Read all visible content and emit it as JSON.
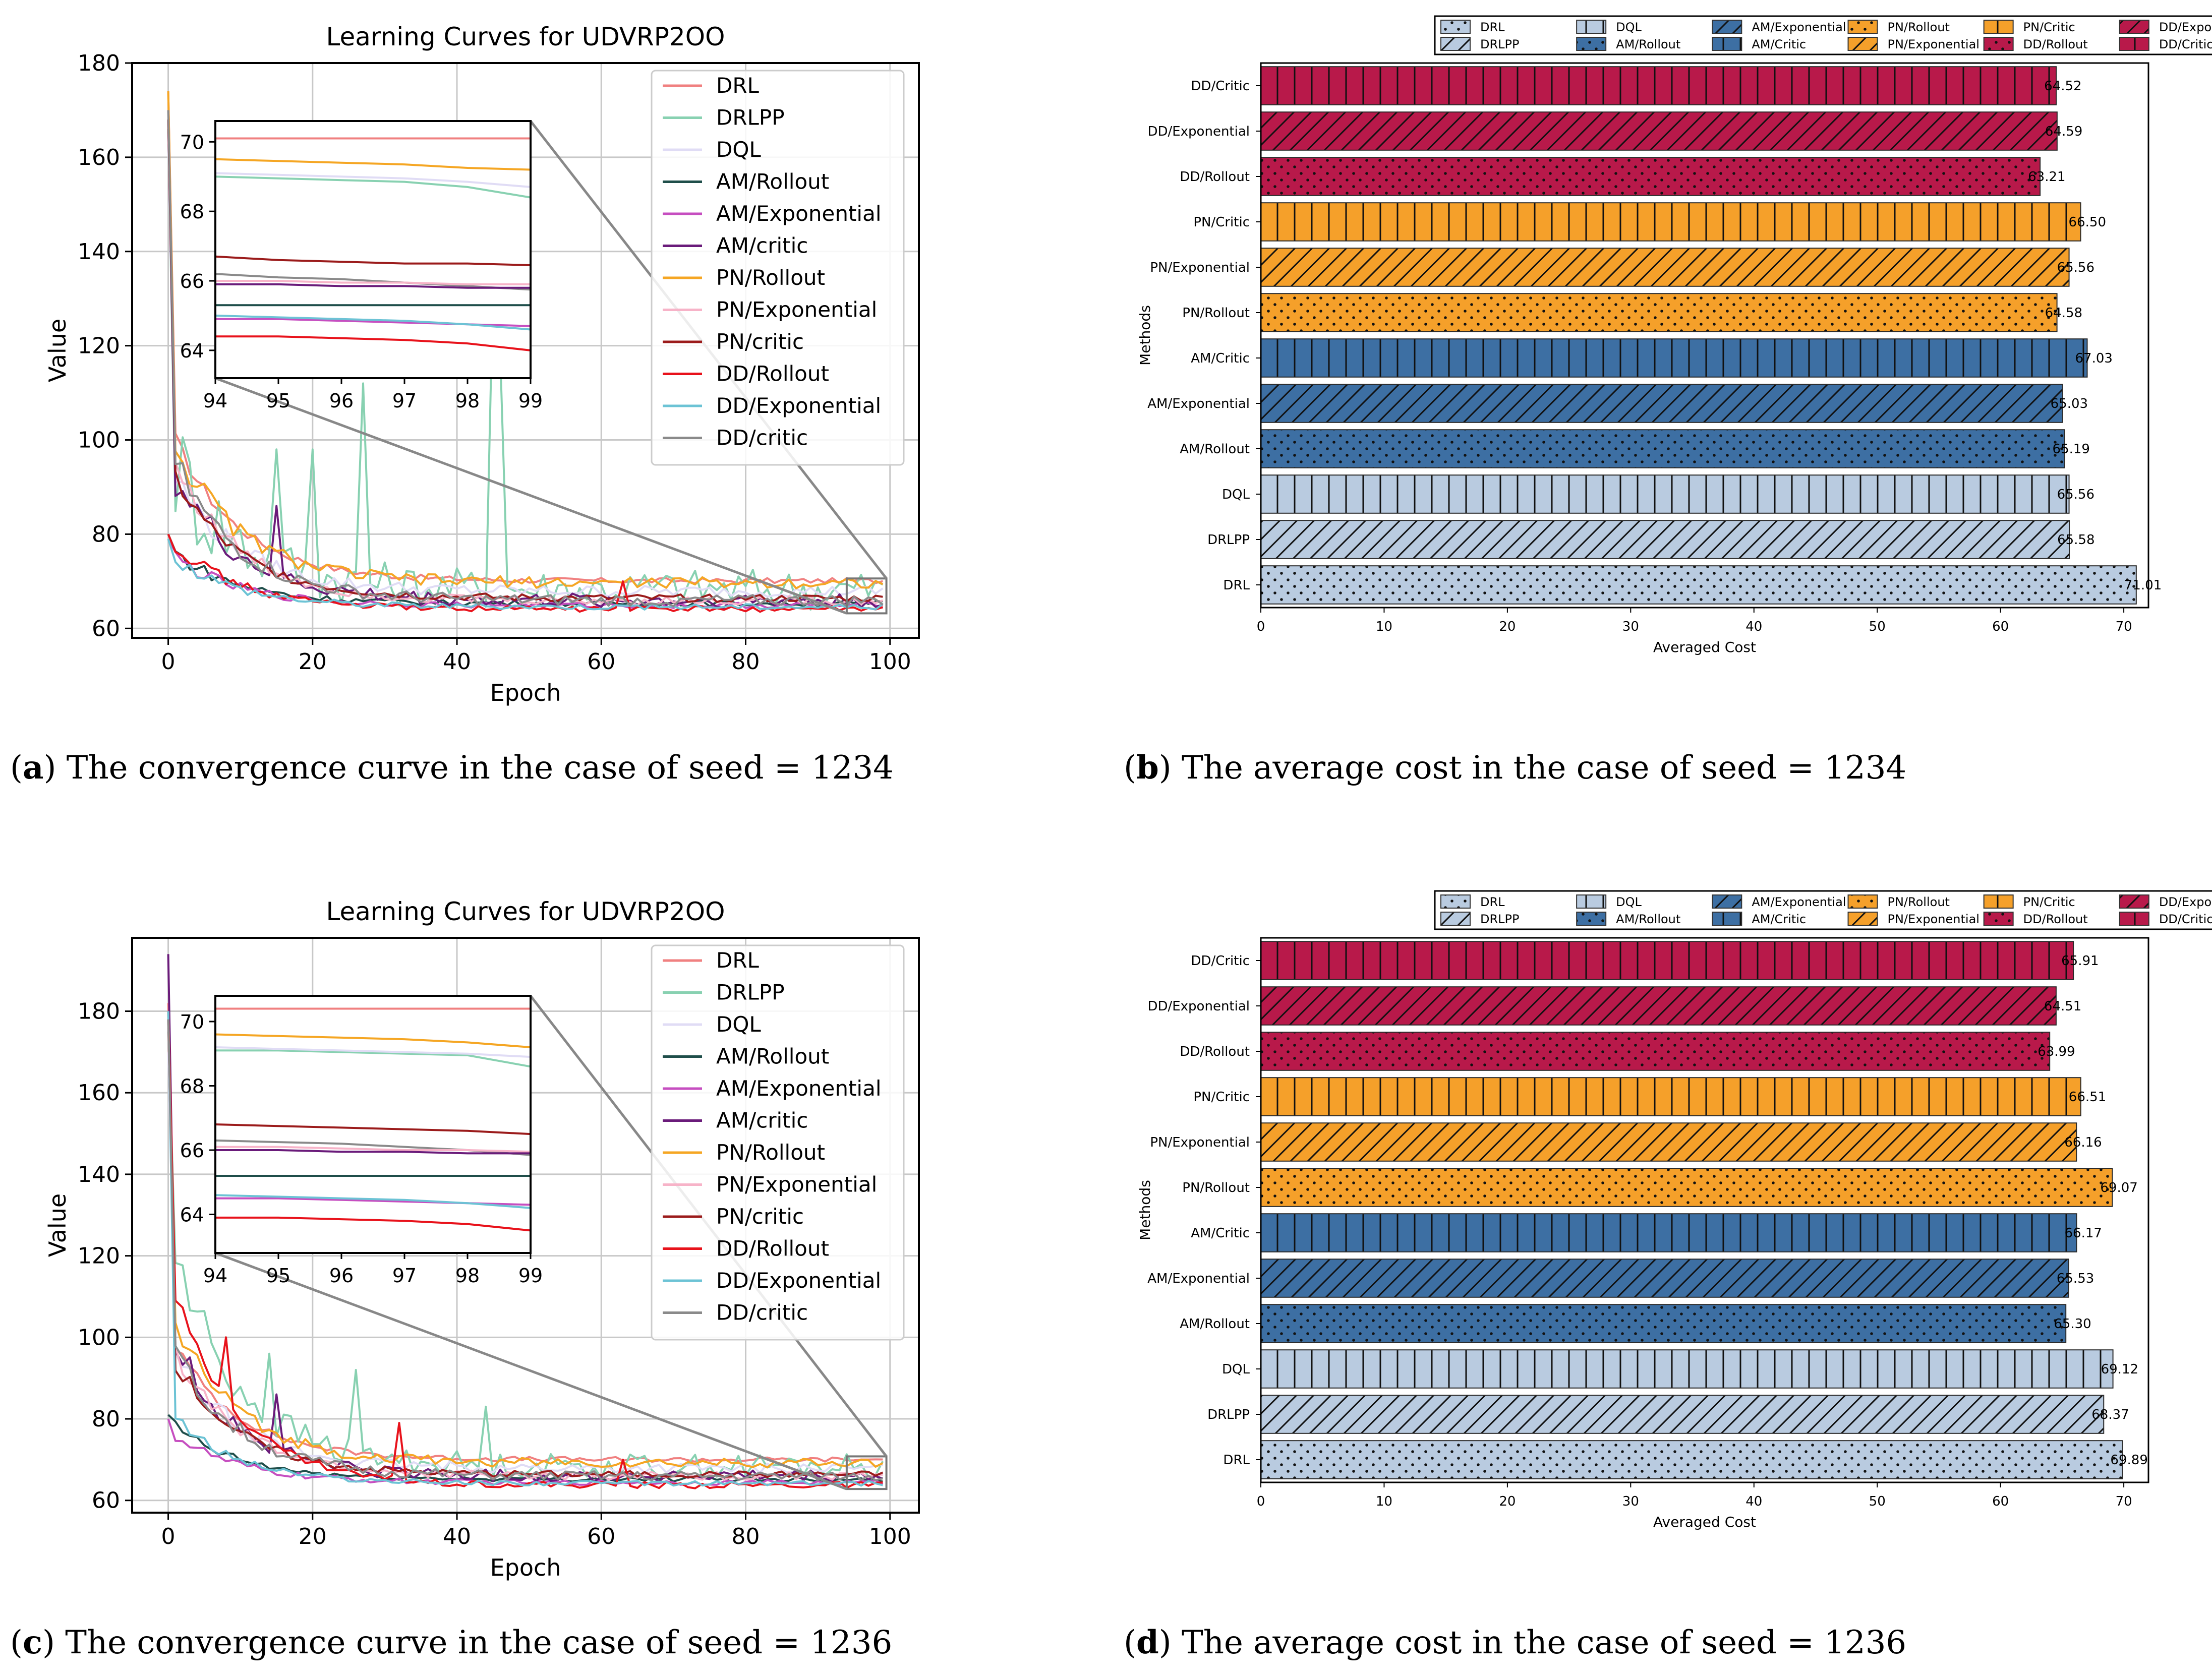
{
  "colors": {
    "DRL": "#f08080",
    "DRLPP": "#88d1b1",
    "DQL": "#e0dcf5",
    "AM/Rollout": "#1f4e4a",
    "AM/Exponential": "#c64ec0",
    "AM/critic": "#6a1b7a",
    "PN/Rollout": "#f5a623",
    "PN/Exponential": "#f7b3c8",
    "PN/critic": "#9b1b1b",
    "DD/Rollout": "#e8121b",
    "DD/Exponential": "#6cc3d5",
    "DD/critic": "#8a8a8a",
    "bar_light_blue": "#b9cbe0",
    "bar_mid_blue": "#3d6fa3",
    "bar_orange": "#f5a02a",
    "bar_crimson": "#b8194a"
  },
  "captions": [
    {
      "letter": "a",
      "text": ") The convergence curve in the case of seed = 1234"
    },
    {
      "letter": "b",
      "text": ") The average cost in the case of seed = 1234"
    },
    {
      "letter": "c",
      "text": ") The convergence curve in the case of seed = 1236"
    },
    {
      "letter": "d",
      "text": ") The average cost in the case of seed = 1236"
    }
  ],
  "chart_data": [
    {
      "id": "a",
      "type": "line",
      "title": "Learning Curves for UDVRP2OO",
      "xlabel": "Epoch",
      "ylabel": "Value",
      "xlim": [
        -5,
        104
      ],
      "ylim": [
        58,
        180
      ],
      "xticks": [
        0,
        20,
        40,
        60,
        80,
        100
      ],
      "yticks": [
        60,
        80,
        100,
        120,
        140,
        160,
        180
      ],
      "legend": [
        "DRL",
        "DRLPP",
        "DQL",
        "AM/Rollout",
        "AM/Exponential",
        "AM/critic",
        "PN/Rollout",
        "PN/Exponential",
        "PN/critic",
        "DD/Rollout",
        "DD/Exponential",
        "DD/critic"
      ],
      "series": [
        {
          "name": "DRL",
          "start": 174,
          "early": 100,
          "final": 70.1,
          "noise": 0.6
        },
        {
          "name": "DRLPP",
          "start": 166,
          "early": 95,
          "final": 68.4,
          "noise": 4.5,
          "spikes": [
            [
              27,
              112
            ],
            [
              45,
              133
            ],
            [
              46,
              118
            ],
            [
              15,
              98
            ],
            [
              20,
              98
            ]
          ]
        },
        {
          "name": "DQL",
          "start": 165,
          "early": 92,
          "final": 67.9,
          "noise": 1.2
        },
        {
          "name": "AM/Rollout",
          "start": 80,
          "early": 76,
          "final": 65.3,
          "noise": 0.6
        },
        {
          "name": "AM/Exponential",
          "start": 79,
          "early": 75,
          "final": 64.9,
          "noise": 0.6
        },
        {
          "name": "AM/critic",
          "start": 168,
          "early": 92,
          "final": 65.9,
          "noise": 1.5,
          "spikes": [
            [
              15,
              86
            ]
          ]
        },
        {
          "name": "PN/Rollout",
          "start": 174,
          "early": 99,
          "final": 69.7,
          "noise": 1.2
        },
        {
          "name": "PN/Exponential",
          "start": 170,
          "early": 95,
          "final": 65.9,
          "noise": 1.0
        },
        {
          "name": "PN/critic",
          "start": 168,
          "early": 92,
          "final": 66.4,
          "noise": 0.8
        },
        {
          "name": "DD/Rollout",
          "start": 80,
          "early": 78,
          "final": 64.1,
          "noise": 0.6,
          "spikes": [
            [
              63,
              70
            ]
          ]
        },
        {
          "name": "DD/Exponential",
          "start": 79,
          "early": 75,
          "final": 64.6,
          "noise": 0.6
        },
        {
          "name": "DD/critic",
          "start": 170,
          "early": 95,
          "final": 65.9,
          "noise": 1.2
        }
      ],
      "inset": {
        "xlim": [
          94,
          99
        ],
        "ylim": [
          63.2,
          70.6
        ],
        "xticks": [
          94,
          95,
          96,
          97,
          98,
          99
        ],
        "yticks": [
          64,
          66,
          68,
          70
        ],
        "series": [
          {
            "name": "DRL",
            "values": [
              70.1,
              70.1,
              70.1,
              70.1,
              70.1,
              70.1
            ]
          },
          {
            "name": "PN/Rollout",
            "values": [
              69.5,
              69.45,
              69.4,
              69.35,
              69.25,
              69.2
            ]
          },
          {
            "name": "DRLPP",
            "values": [
              69.0,
              68.95,
              68.9,
              68.85,
              68.7,
              68.4
            ]
          },
          {
            "name": "DQL",
            "values": [
              69.1,
              69.05,
              69.0,
              68.95,
              68.85,
              68.7
            ]
          },
          {
            "name": "PN/critic",
            "values": [
              66.7,
              66.6,
              66.55,
              66.5,
              66.5,
              66.45
            ]
          },
          {
            "name": "DD/critic",
            "values": [
              66.2,
              66.1,
              66.05,
              65.95,
              65.85,
              65.75
            ]
          },
          {
            "name": "PN/Exponential",
            "values": [
              66.0,
              66.0,
              65.95,
              65.95,
              65.9,
              65.9
            ]
          },
          {
            "name": "AM/critic",
            "values": [
              65.9,
              65.9,
              65.85,
              65.85,
              65.8,
              65.8
            ]
          },
          {
            "name": "AM/Rollout",
            "values": [
              65.3,
              65.3,
              65.3,
              65.3,
              65.3,
              65.3
            ]
          },
          {
            "name": "AM/Exponential",
            "values": [
              64.9,
              64.9,
              64.85,
              64.8,
              64.75,
              64.7
            ]
          },
          {
            "name": "DD/Exponential",
            "values": [
              65.0,
              64.95,
              64.9,
              64.85,
              64.75,
              64.6
            ]
          },
          {
            "name": "DD/Rollout",
            "values": [
              64.4,
              64.4,
              64.35,
              64.3,
              64.2,
              64.0
            ]
          }
        ]
      }
    },
    {
      "id": "b",
      "type": "bar",
      "orientation": "horizontal",
      "xlabel": "Averaged Cost",
      "ylabel": "Methods",
      "xlim": [
        0,
        72
      ],
      "xticks": [
        0,
        10,
        20,
        30,
        40,
        50,
        60,
        70
      ],
      "legend": [
        "DRL",
        "DRLPP",
        "DQL",
        "AM/Rollout",
        "AM/Exponential",
        "AM/Critic",
        "PN/Rollout",
        "PN/Exponential",
        "PN/Critic",
        "DD/Rollout",
        "DD/Exponential",
        "DD/Critic"
      ],
      "categories": [
        "DRL",
        "DRLPP",
        "DQL",
        "AM/Rollout",
        "AM/Exponential",
        "AM/Critic",
        "PN/Rollout",
        "PN/Exponential",
        "PN/Critic",
        "DD/Rollout",
        "DD/Exponential",
        "DD/Critic"
      ],
      "values": [
        71.01,
        65.58,
        65.56,
        65.19,
        65.03,
        67.03,
        64.58,
        65.56,
        66.5,
        63.21,
        64.59,
        64.52
      ],
      "labels": [
        "71.01",
        "65.58",
        "65.56",
        "65.19",
        "65.03",
        "67.03",
        "64.58",
        "65.56",
        "66.50",
        "63.21",
        "64.59",
        "64.52"
      ]
    },
    {
      "id": "c",
      "type": "line",
      "title": "Learning Curves for UDVRP2OO",
      "xlabel": "Epoch",
      "ylabel": "Value",
      "xlim": [
        -5,
        104
      ],
      "ylim": [
        57,
        198
      ],
      "xticks": [
        0,
        20,
        40,
        60,
        80,
        100
      ],
      "yticks": [
        60,
        80,
        100,
        120,
        140,
        160,
        180
      ],
      "legend": [
        "DRL",
        "DRLPP",
        "DQL",
        "AM/Rollout",
        "AM/Exponential",
        "AM/critic",
        "PN/Rollout",
        "PN/Exponential",
        "PN/critic",
        "DD/Rollout",
        "DD/Exponential",
        "DD/critic"
      ],
      "series": [
        {
          "name": "DRL",
          "start": 182,
          "early": 98,
          "final": 70.0,
          "noise": 0.6
        },
        {
          "name": "DRLPP",
          "start": 175,
          "early": 120,
          "final": 68.4,
          "noise": 3.0,
          "spikes": [
            [
              14,
              96
            ],
            [
              26,
              92
            ],
            [
              44,
              83
            ]
          ]
        },
        {
          "name": "DQL",
          "start": 170,
          "early": 95,
          "final": 67.9,
          "noise": 1.2
        },
        {
          "name": "AM/Rollout",
          "start": 81,
          "early": 78,
          "final": 65.2,
          "noise": 0.6
        },
        {
          "name": "AM/Exponential",
          "start": 80,
          "early": 76,
          "final": 64.4,
          "noise": 0.6
        },
        {
          "name": "AM/critic",
          "start": 194,
          "early": 98,
          "final": 65.9,
          "noise": 1.5,
          "spikes": [
            [
              15,
              86
            ]
          ]
        },
        {
          "name": "PN/Rollout",
          "start": 180,
          "early": 103,
          "final": 69.2,
          "noise": 1.2
        },
        {
          "name": "PN/Exponential",
          "start": 176,
          "early": 96,
          "final": 66.0,
          "noise": 1.0
        },
        {
          "name": "PN/critic",
          "start": 178,
          "early": 94,
          "final": 66.4,
          "noise": 0.8
        },
        {
          "name": "DD/Rollout",
          "start": 180,
          "early": 110,
          "final": 63.7,
          "noise": 0.8,
          "spikes": [
            [
              8,
              100
            ],
            [
              32,
              79
            ],
            [
              63,
              70
            ]
          ]
        },
        {
          "name": "DD/Exponential",
          "start": 180,
          "early": 80,
          "final": 64.2,
          "noise": 0.6
        },
        {
          "name": "DD/critic",
          "start": 178,
          "early": 96,
          "final": 66.0,
          "noise": 1.2
        }
      ],
      "inset": {
        "xlim": [
          94,
          99
        ],
        "ylim": [
          62.8,
          70.8
        ],
        "xticks": [
          94,
          95,
          96,
          97,
          98,
          99
        ],
        "yticks": [
          64,
          66,
          68,
          70
        ],
        "series": [
          {
            "name": "DRL",
            "values": [
              70.4,
              70.4,
              70.4,
              70.4,
              70.4,
              70.4
            ]
          },
          {
            "name": "PN/Rollout",
            "values": [
              69.6,
              69.55,
              69.5,
              69.45,
              69.35,
              69.2
            ]
          },
          {
            "name": "DRLPP",
            "values": [
              69.1,
              69.1,
              69.05,
              69.0,
              68.95,
              68.6
            ]
          },
          {
            "name": "DQL",
            "values": [
              69.2,
              69.15,
              69.1,
              69.05,
              69.0,
              68.9
            ]
          },
          {
            "name": "PN/critic",
            "values": [
              66.8,
              66.75,
              66.7,
              66.65,
              66.6,
              66.5
            ]
          },
          {
            "name": "DD/critic",
            "values": [
              66.3,
              66.25,
              66.2,
              66.1,
              66.0,
              65.85
            ]
          },
          {
            "name": "PN/Exponential",
            "values": [
              66.1,
              66.1,
              66.05,
              66.0,
              66.0,
              65.95
            ]
          },
          {
            "name": "AM/critic",
            "values": [
              66.0,
              66.0,
              65.95,
              65.95,
              65.9,
              65.9
            ]
          },
          {
            "name": "AM/Rollout",
            "values": [
              65.2,
              65.2,
              65.2,
              65.2,
              65.2,
              65.2
            ]
          },
          {
            "name": "AM/Exponential",
            "values": [
              64.5,
              64.5,
              64.45,
              64.4,
              64.35,
              64.3
            ]
          },
          {
            "name": "DD/Exponential",
            "values": [
              64.6,
              64.55,
              64.5,
              64.45,
              64.35,
              64.2
            ]
          },
          {
            "name": "DD/Rollout",
            "values": [
              63.9,
              63.9,
              63.85,
              63.8,
              63.7,
              63.5
            ]
          }
        ]
      }
    },
    {
      "id": "d",
      "type": "bar",
      "orientation": "horizontal",
      "xlabel": "Averaged Cost",
      "ylabel": "Methods",
      "xlim": [
        0,
        72
      ],
      "xticks": [
        0,
        10,
        20,
        30,
        40,
        50,
        60,
        70
      ],
      "legend": [
        "DRL",
        "DRLPP",
        "DQL",
        "AM/Rollout",
        "AM/Exponential",
        "AM/Critic",
        "PN/Rollout",
        "PN/Exponential",
        "PN/Critic",
        "DD/Rollout",
        "DD/Exponential",
        "DD/Critic"
      ],
      "categories": [
        "DRL",
        "DRLPP",
        "DQL",
        "AM/Rollout",
        "AM/Exponential",
        "AM/Critic",
        "PN/Rollout",
        "PN/Exponential",
        "PN/Critic",
        "DD/Rollout",
        "DD/Exponential",
        "DD/Critic"
      ],
      "values": [
        69.89,
        68.37,
        69.12,
        65.3,
        65.53,
        66.17,
        69.07,
        66.16,
        66.51,
        63.99,
        64.51,
        65.91
      ],
      "labels": [
        "69.89",
        "68.37",
        "69.12",
        "65.30",
        "65.53",
        "66.17",
        "69.07",
        "66.16",
        "66.51",
        "63.99",
        "64.51",
        "65.91"
      ]
    }
  ]
}
